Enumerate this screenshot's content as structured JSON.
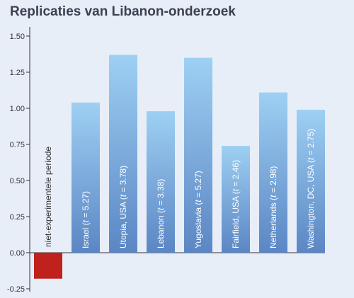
{
  "title": "Replicaties van Libanon-onderzoek",
  "colors": {
    "background": "#e8eef8",
    "bar_top": "#9ed0f3",
    "bar_bottom": "#5b86c4",
    "negative_bar": "#c0211c",
    "axis": "#333333"
  },
  "chart_data": {
    "type": "bar",
    "title": "Replicaties van Libanon-onderzoek",
    "xlabel": "",
    "ylabel": "",
    "ylim": [
      -0.25,
      1.5
    ],
    "yticks": [
      "1.50",
      "1.25",
      "1.00",
      "0.75",
      "0.50",
      "0.25",
      "0.00",
      "-0.25"
    ],
    "ytick_values": [
      1.5,
      1.25,
      1.0,
      0.75,
      0.5,
      0.25,
      0.0,
      -0.25
    ],
    "grid": false,
    "categories": [
      "niet-experimentele periode",
      "Israel (t = 5.27)",
      "Utopia, USA (t = 3.78)",
      "Lebanon (t = 3.38)",
      "Yugoslavia (t = 5.27)",
      "Fairfield, USA (t = 2.46)",
      "Netherlands (t = 2.98)",
      "Washington, DC, USA (t = 2.75)"
    ],
    "label_parts": [
      {
        "pre": "niet-experimentele periode",
        "t": "",
        "post": ""
      },
      {
        "pre": "Israel (",
        "t": "t",
        "post": " = 5.27)"
      },
      {
        "pre": "Utopia, USA (",
        "t": "t",
        "post": " = 3.78)"
      },
      {
        "pre": "Lebanon (",
        "t": "t",
        "post": " = 3.38)"
      },
      {
        "pre": "Yugoslavia (",
        "t": "t",
        "post": " = 5.27)"
      },
      {
        "pre": "Fairfield, USA (",
        "t": "t",
        "post": " = 2.46)"
      },
      {
        "pre": "Netherlands (",
        "t": "t",
        "post": " = 2.98)"
      },
      {
        "pre": "Washington, DC, USA (",
        "t": "t",
        "post": " = 2.75)"
      }
    ],
    "values": [
      -0.18,
      1.04,
      1.37,
      0.98,
      1.35,
      0.74,
      1.11,
      0.99
    ]
  }
}
